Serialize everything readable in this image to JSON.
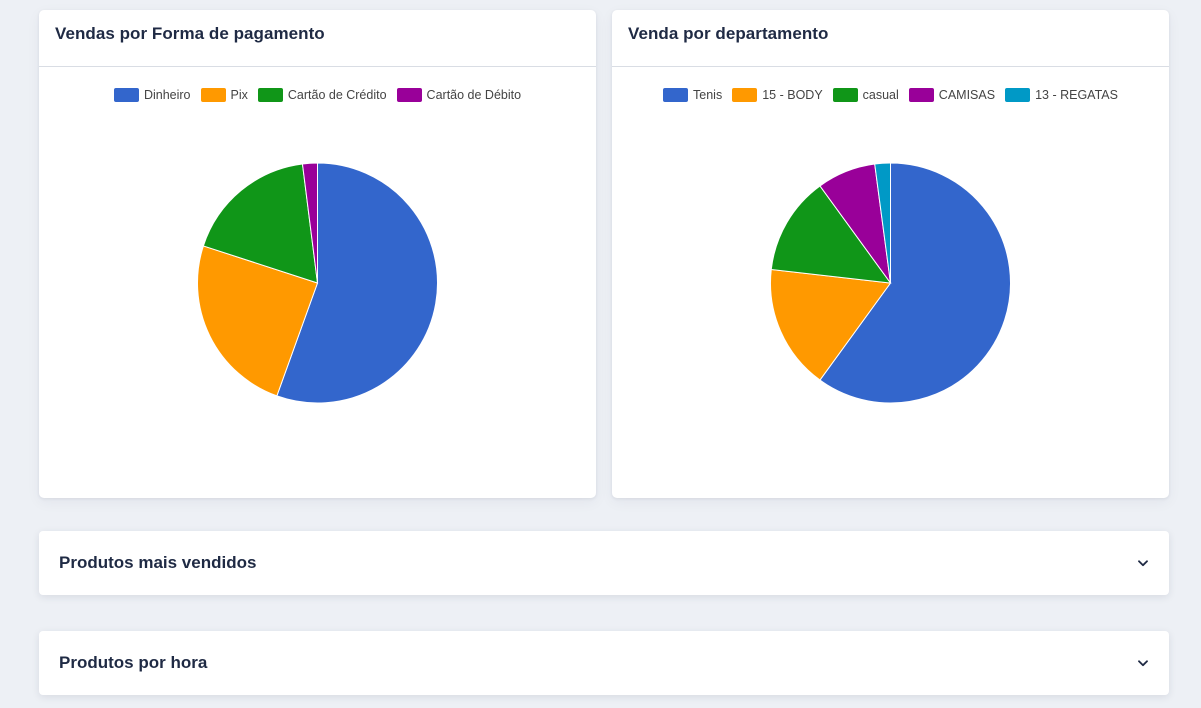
{
  "payment_chart": {
    "title": "Vendas por Forma de pagamento"
  },
  "department_chart": {
    "title": "Venda por departamento"
  },
  "accordions": [
    {
      "label": "Produtos mais vendidos",
      "icon": "chevron-down-icon"
    },
    {
      "label": "Produtos por hora",
      "icon": "chevron-down-icon"
    }
  ],
  "chart_data": [
    {
      "type": "pie",
      "title": "Vendas por Forma de pagamento",
      "legend_position": "top",
      "slices": [
        {
          "label": "Dinheiro",
          "value": 55.5,
          "color": "#3366cc"
        },
        {
          "label": "Pix",
          "value": 24.5,
          "color": "#ff9900"
        },
        {
          "label": "Cartão de Crédito",
          "value": 18.0,
          "color": "#109618"
        },
        {
          "label": "Cartão de Débito",
          "value": 2.0,
          "color": "#990099"
        }
      ]
    },
    {
      "type": "pie",
      "title": "Venda por departamento",
      "legend_position": "top",
      "slices": [
        {
          "label": "Tenis",
          "value": 60.0,
          "color": "#3366cc"
        },
        {
          "label": "15 - BODY",
          "value": 16.8,
          "color": "#ff9900"
        },
        {
          "label": "casual",
          "value": 13.2,
          "color": "#109618"
        },
        {
          "label": "CAMISAS",
          "value": 7.9,
          "color": "#990099"
        },
        {
          "label": "13 - REGATAS",
          "value": 2.1,
          "color": "#0099c6"
        }
      ]
    }
  ]
}
